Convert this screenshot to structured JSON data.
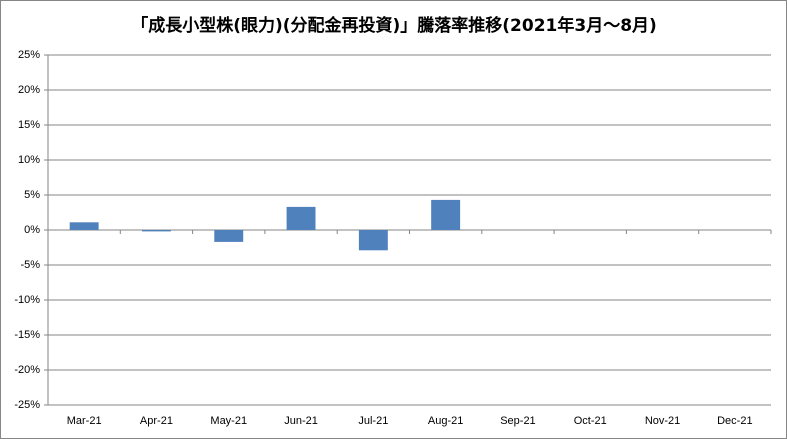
{
  "chart_data": {
    "type": "bar",
    "title": "「成長小型株(眼力)(分配金再投資)」騰落率推移(2021年3月～8月)",
    "categories": [
      "Mar-21",
      "Apr-21",
      "May-21",
      "Jun-21",
      "Jul-21",
      "Aug-21",
      "Sep-21",
      "Oct-21",
      "Nov-21",
      "Dec-21"
    ],
    "values": [
      1.1,
      -0.2,
      -1.7,
      3.3,
      -2.9,
      4.3,
      null,
      null,
      null,
      null
    ],
    "color": "#4f81bd",
    "ylim": [
      -25,
      25
    ],
    "yticks": [
      {
        "value": -25,
        "label": "-25%"
      },
      {
        "value": -20,
        "label": "-20%"
      },
      {
        "value": -15,
        "label": "-15%"
      },
      {
        "value": -10,
        "label": "-10%"
      },
      {
        "value": -5,
        "label": "-5%"
      },
      {
        "value": 0,
        "label": "0%"
      },
      {
        "value": 5,
        "label": "5%"
      },
      {
        "value": 10,
        "label": "10%"
      },
      {
        "value": 15,
        "label": "15%"
      },
      {
        "value": 20,
        "label": "20%"
      },
      {
        "value": 25,
        "label": "25%"
      }
    ],
    "grid": true
  }
}
